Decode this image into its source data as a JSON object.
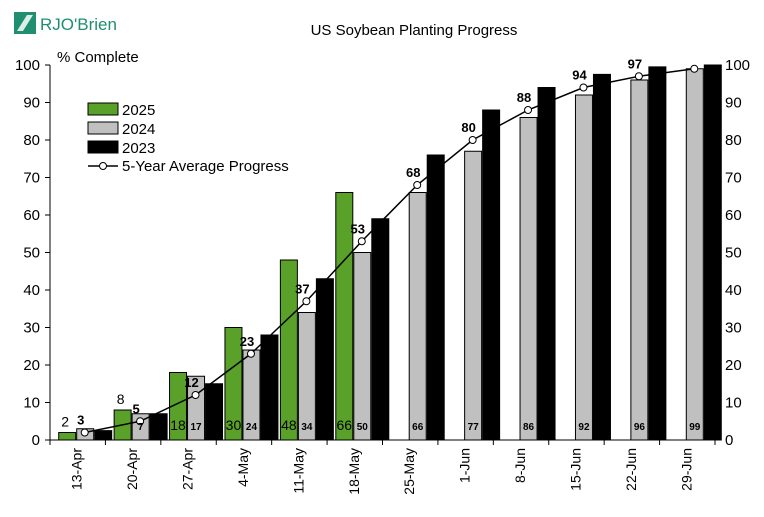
{
  "brand": {
    "name": "RJO'Brien",
    "color": "#1f8f6f"
  },
  "chart_data": {
    "type": "bar",
    "title": "US Soybean Planting Progress",
    "ylabel": "% Complete",
    "ylim": [
      0,
      100
    ],
    "yticks": [
      0,
      10,
      20,
      30,
      40,
      50,
      60,
      70,
      80,
      90,
      100
    ],
    "grid": false,
    "legend_position": "top-left",
    "categories": [
      "13-Apr",
      "20-Apr",
      "27-Apr",
      "4-May",
      "11-May",
      "18-May",
      "25-May",
      "1-Jun",
      "8-Jun",
      "15-Jun",
      "22-Jun",
      "29-Jun"
    ],
    "series": [
      {
        "name": "2025",
        "kind": "bar",
        "color": "#59a128",
        "values": [
          2,
          8,
          18,
          30,
          48,
          66,
          null,
          null,
          null,
          null,
          null,
          null
        ]
      },
      {
        "name": "2024",
        "kind": "bar",
        "color": "#c0c0c0",
        "values": [
          3,
          7,
          17,
          24,
          34,
          50,
          66,
          77,
          86,
          92,
          96,
          99
        ]
      },
      {
        "name": "2023",
        "kind": "bar",
        "color": "#000000",
        "values": [
          2.5,
          7,
          15,
          28,
          43,
          59,
          76,
          88,
          94,
          97.5,
          99.5,
          100
        ]
      },
      {
        "name": "5-Year Average Progress",
        "kind": "line",
        "color": "#000000",
        "values": [
          2,
          5,
          12,
          23,
          37,
          53,
          68,
          80,
          88,
          94,
          97,
          99
        ]
      }
    ],
    "labels": {
      "bar_2025": [
        "2",
        "8",
        "18",
        "30",
        "48",
        "66",
        "",
        "",
        "",
        "",
        "",
        ""
      ],
      "bar_2024": [
        "",
        "7",
        "17",
        "24",
        "34",
        "50",
        "66",
        "77",
        "86",
        "92",
        "96",
        "99"
      ],
      "avg_above_2025": [
        "2",
        "8",
        "",
        "",
        "",
        "",
        "",
        "",
        "",
        "",
        "",
        ""
      ],
      "avg": [
        "3",
        "5",
        "12",
        "23",
        "37",
        "53",
        "68",
        "80",
        "88",
        "94",
        "97",
        ""
      ]
    }
  }
}
